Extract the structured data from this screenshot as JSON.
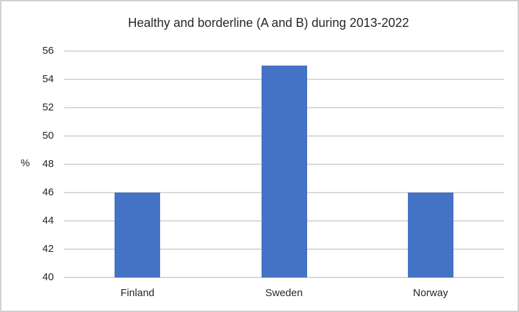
{
  "chart_data": {
    "type": "bar",
    "title": "Healthy and borderline (A and B) during 2013-2022",
    "xlabel": "",
    "ylabel": "%",
    "categories": [
      "Finland",
      "Sweden",
      "Norway"
    ],
    "values": [
      46,
      55,
      46
    ],
    "ylim": [
      40,
      56
    ],
    "ytick_step": 2,
    "grid": true,
    "legend_position": "none",
    "bar_color": "#4472C4",
    "gridline_color": "#D9D9D9",
    "axis_line_color": "#D9D9D9",
    "text_color": "#262626",
    "border_color": "#CFCFCF",
    "background_color": "#FFFFFF"
  }
}
